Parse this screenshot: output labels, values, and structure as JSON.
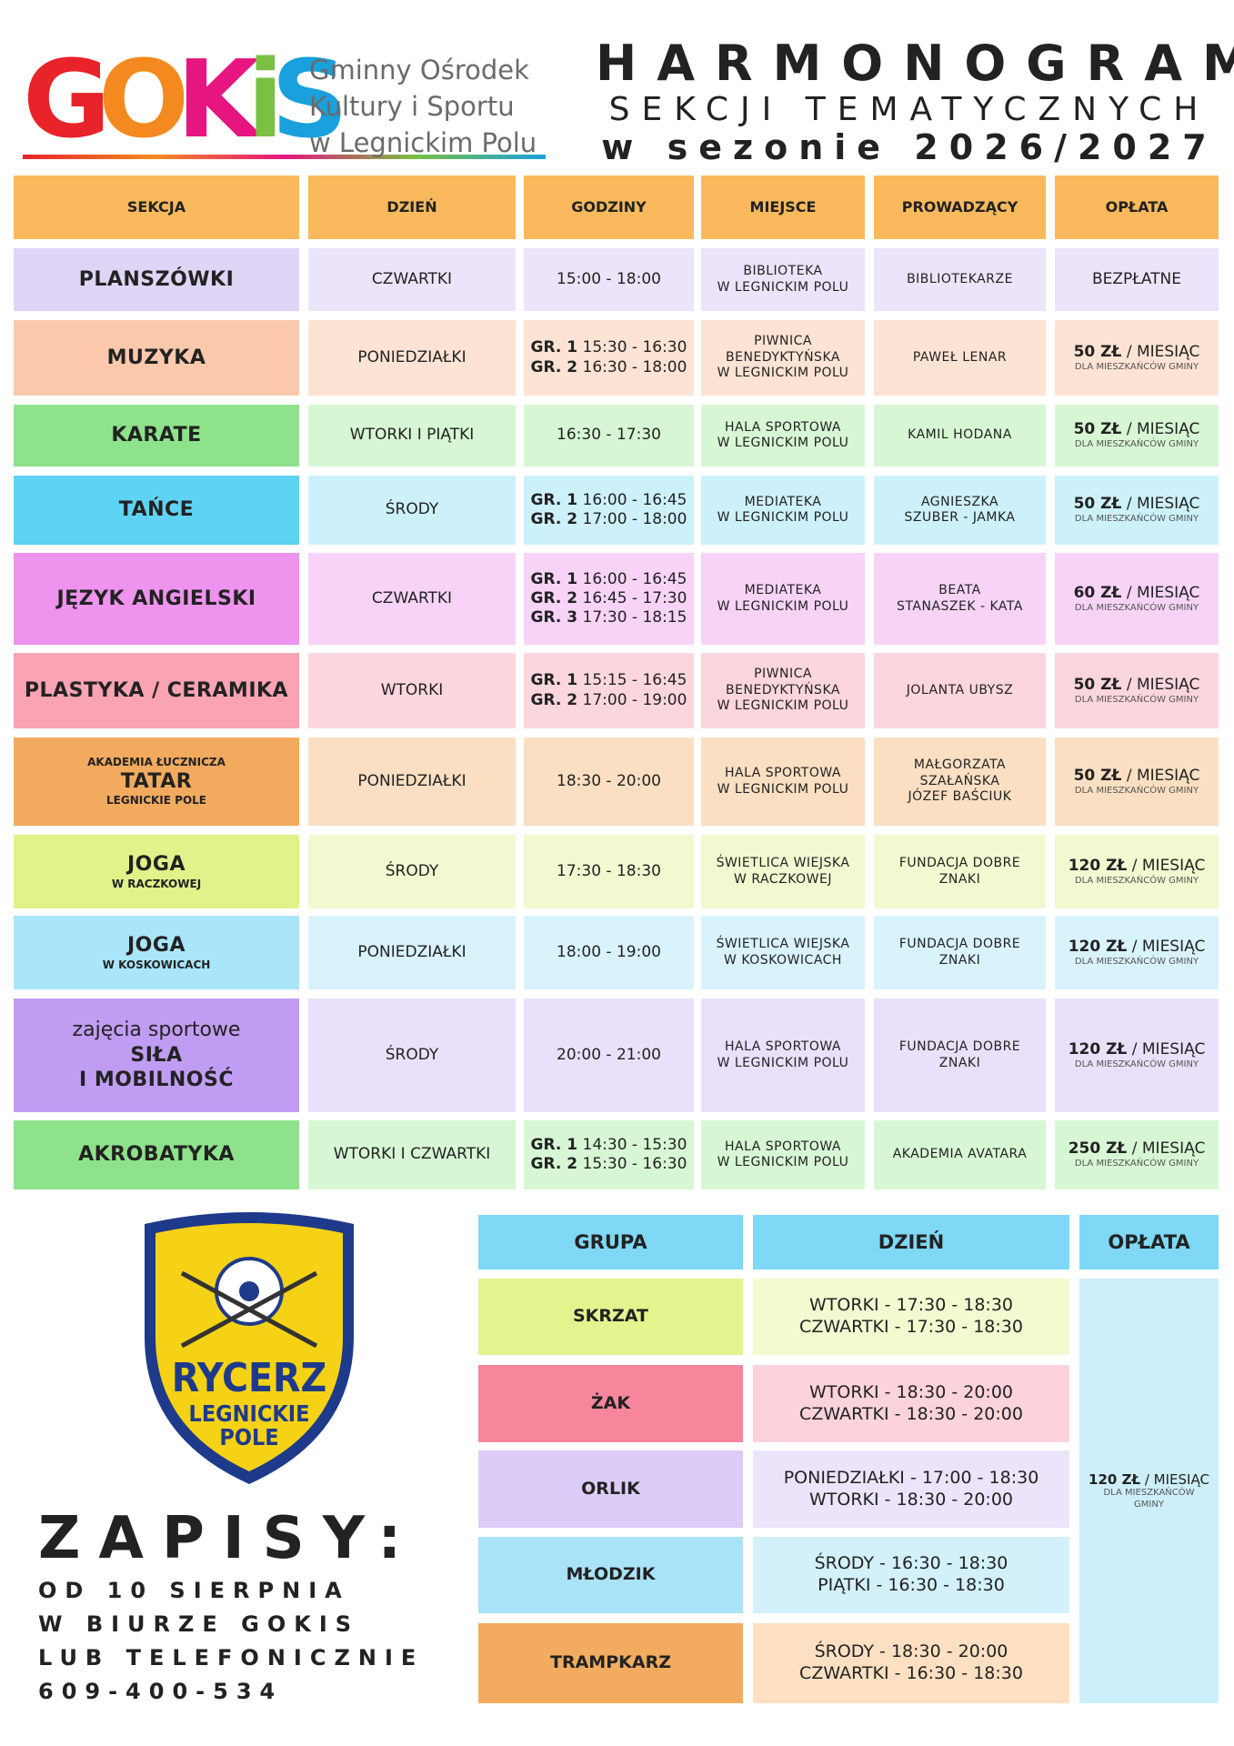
{
  "header": {
    "logo": [
      "G",
      "O",
      "K",
      "i",
      "S"
    ],
    "org": [
      "Gminny Ośrodek",
      "Kultury i Sportu",
      "w Legnickim Polu"
    ],
    "title": [
      "HARMONOGRAM",
      "SEKCJI TEMATYCZNYCH",
      "w sezonie 2026/2027"
    ]
  },
  "table": {
    "header_color": "#f9b95c",
    "headers": [
      "SEKCJA",
      "DZIEŃ",
      "GODZINY",
      "MIEJSCE",
      "PROWADZĄCY",
      "OPŁATA"
    ],
    "rows": [
      {
        "color": "#e0d4f7",
        "light": "#ece4fa",
        "section": {
          "name": [
            "PLANSZÓWKI"
          ]
        },
        "day": "CZWARTKI",
        "hours": [
          "15:00 - 18:00"
        ],
        "place": [
          "BIBLIOTEKA",
          "W LEGNICKIM POLU"
        ],
        "instructor": [
          "BIBLIOTEKARZE"
        ],
        "fee": {
          "amount": "BEZPŁATNE"
        }
      },
      {
        "color": "#fcc9ac",
        "light": "#fde3d4",
        "section": {
          "name": [
            "MUZYKA"
          ]
        },
        "day": "PONIEDZIAŁKI",
        "hours": [
          {
            "group": "GR. 1",
            "time": "15:30 - 16:30"
          },
          {
            "group": "GR. 2",
            "time": "16:30 - 18:00"
          }
        ],
        "place": [
          "PIWNICA",
          "BENEDYKTYŃSKA",
          "W LEGNICKIM POLU"
        ],
        "instructor": [
          "PAWEŁ LENAR"
        ],
        "fee": {
          "amount": "50 ZŁ",
          "unit": "/ MIESIĄC",
          "note": "DLA MIESZKAŃCÓW GMINY"
        }
      },
      {
        "color": "#8ee38a",
        "light": "#d7f7d4",
        "section": {
          "name": [
            "KARATE"
          ]
        },
        "day": "WTORKI I PIĄTKI",
        "hours": [
          "16:30 - 17:30"
        ],
        "place": [
          "HALA SPORTOWA",
          "W LEGNICKIM POLU"
        ],
        "instructor": [
          "KAMIL HODANA"
        ],
        "fee": {
          "amount": "50 ZŁ",
          "unit": "/ MIESIĄC",
          "note": "DLA MIESZKAŃCÓW GMINY"
        }
      },
      {
        "color": "#5fd3f3",
        "light": "#cdf1fb",
        "section": {
          "name": [
            "TAŃCE"
          ]
        },
        "day": "ŚRODY",
        "hours": [
          {
            "group": "GR. 1",
            "time": "16:00 - 16:45"
          },
          {
            "group": "GR. 2",
            "time": "17:00 - 18:00"
          }
        ],
        "place": [
          "MEDIATEKA",
          "W LEGNICKIM POLU"
        ],
        "instructor": [
          "AGNIESZKA",
          "SZUBER - JAMKA"
        ],
        "fee": {
          "amount": "50 ZŁ",
          "unit": "/ MIESIĄC",
          "note": "DLA MIESZKAŃCÓW GMINY"
        }
      },
      {
        "color": "#ee93ee",
        "light": "#f7d4f7",
        "section": {
          "name": [
            "JĘZYK ANGIELSKI"
          ]
        },
        "day": "CZWARTKI",
        "hours": [
          {
            "group": "GR. 1",
            "time": "16:00 - 16:45"
          },
          {
            "group": "GR. 2",
            "time": "16:45 - 17:30"
          },
          {
            "group": "GR. 3",
            "time": "17:30 - 18:15"
          }
        ],
        "place": [
          "MEDIATEKA",
          "W LEGNICKIM POLU"
        ],
        "instructor": [
          "BEATA",
          "STANASZEK - KATA"
        ],
        "fee": {
          "amount": "60 ZŁ",
          "unit": "/ MIESIĄC",
          "note": "DLA MIESZKAŃCÓW GMINY"
        }
      },
      {
        "color": "#f9a3b3",
        "light": "#fcd6dd",
        "section": {
          "name": [
            "PLASTYKA / CERAMIKA"
          ]
        },
        "day": "WTORKI",
        "hours": [
          {
            "group": "GR. 1",
            "time": "15:15 - 16:45"
          },
          {
            "group": "GR. 2",
            "time": "17:00 - 19:00"
          }
        ],
        "place": [
          "PIWNICA",
          "BENEDYKTYŃSKA",
          "W LEGNICKIM POLU"
        ],
        "instructor": [
          "JOLANTA UBYSZ"
        ],
        "fee": {
          "amount": "50 ZŁ",
          "unit": "/ MIESIĄC",
          "note": "DLA MIESZKAŃCÓW GMINY"
        }
      },
      {
        "color": "#f2aa5e",
        "light": "#fbdfc2",
        "section": {
          "above": "AKADEMIA ŁUCZNICZA",
          "name": [
            "TATAR"
          ],
          "below": "LEGNICKIE POLE"
        },
        "day": "PONIEDZIAŁKI",
        "hours": [
          "18:30 - 20:00"
        ],
        "place": [
          "HALA SPORTOWA",
          "W LEGNICKIM POLU"
        ],
        "instructor": [
          "MAŁGORZATA",
          "SZAŁAŃSKA",
          "JÓZEF BAŚCIUK"
        ],
        "fee": {
          "amount": "50 ZŁ",
          "unit": "/ MIESIĄC",
          "note": "DLA MIESZKAŃCÓW GMINY"
        }
      },
      {
        "color": "#e0f28a",
        "light": "#f1f9d0",
        "section": {
          "name": [
            "JOGA"
          ],
          "below": "W RACZKOWEJ"
        },
        "day": "ŚRODY",
        "hours": [
          "17:30 - 18:30"
        ],
        "place": [
          "ŚWIETLICA WIEJSKA",
          "W RACZKOWEJ"
        ],
        "instructor": [
          "FUNDACJA DOBRE",
          "ZNAKI"
        ],
        "fee": {
          "amount": "120 ZŁ",
          "unit": "/ MIESIĄC",
          "note": "DLA MIESZKAŃCÓW GMINY"
        }
      },
      {
        "color": "#a9e6fb",
        "light": "#d8f3fc",
        "section": {
          "name": [
            "JOGA"
          ],
          "below": "W KOSKOWICACH"
        },
        "day": "PONIEDZIAŁKI",
        "hours": [
          "18:00 - 19:00"
        ],
        "place": [
          "ŚWIETLICA WIEJSKA",
          "W KOSKOWICACH"
        ],
        "instructor": [
          "FUNDACJA DOBRE",
          "ZNAKI"
        ],
        "fee": {
          "amount": "120 ZŁ",
          "unit": "/ MIESIĄC",
          "note": "DLA MIESZKAŃCÓW GMINY"
        }
      },
      {
        "color": "#c09df2",
        "light": "#ebe0fb",
        "section": {
          "lead": "zajęcia sportowe",
          "name": [
            "SIŁA",
            "I MOBILNOŚĆ"
          ]
        },
        "day": "ŚRODY",
        "hours": [
          "20:00 - 21:00"
        ],
        "place": [
          "HALA SPORTOWA",
          "W LEGNICKIM POLU"
        ],
        "instructor": [
          "FUNDACJA DOBRE",
          "ZNAKI"
        ],
        "fee": {
          "amount": "120 ZŁ",
          "unit": "/ MIESIĄC",
          "note": "DLA MIESZKAŃCÓW GMINY"
        }
      },
      {
        "color": "#8ee38a",
        "light": "#d7f7d4",
        "section": {
          "name": [
            "AKROBATYKA"
          ]
        },
        "day": "WTORKI I CZWARTKI",
        "hours": [
          {
            "group": "GR. 1",
            "time": "14:30 - 15:30"
          },
          {
            "group": "GR. 2",
            "time": "15:30 - 16:30"
          }
        ],
        "place": [
          "HALA SPORTOWA",
          "W LEGNICKIM POLU"
        ],
        "instructor": [
          "AKADEMIA AVATARA"
        ],
        "fee": {
          "amount": "250 ZŁ",
          "unit": "/ MIESIĄC",
          "note": "DLA MIESZKAŃCÓW GMINY"
        }
      }
    ]
  },
  "club": {
    "badge": [
      "RYCERZ",
      "LEGNICKIE",
      "POLE"
    ],
    "header_color": "#7ed8f6",
    "headers": [
      "GRUPA",
      "DZIEŃ",
      "OPŁATA"
    ],
    "rows": [
      {
        "color": "#e3f48f",
        "light": "#f2fbd0",
        "group": "SKRZAT",
        "days": [
          "WTORKI - 17:30 - 18:30",
          "CZWARTKI - 17:30 - 18:30"
        ]
      },
      {
        "color": "#f7869c",
        "light": "#fcd3db",
        "group": "ŻAK",
        "days": [
          "WTORKI - 18:30 - 20:00",
          "CZWARTKI - 18:30 - 20:00"
        ]
      },
      {
        "color": "#dcccf7",
        "light": "#ece4fb",
        "group": "ORLIK",
        "days": [
          "PONIEDZIAŁKI - 17:00 - 18:30",
          "WTORKI - 18:30 - 20:00"
        ]
      },
      {
        "color": "#a9e3f9",
        "light": "#d3f1fb",
        "group": "MŁODZIK",
        "days": [
          "ŚRODY - 16:30 - 18:30",
          "PIĄTKI - 16:30 - 18:30"
        ]
      },
      {
        "color": "#f3ab5f",
        "light": "#fde0c2",
        "group": "TRAMPKARZ",
        "days": [
          "ŚRODY - 18:30 - 20:00",
          "CZWARTKI - 16:30 - 18:30"
        ]
      }
    ],
    "fee_color": "#cdeffb",
    "fee": {
      "amount": "120 ZŁ",
      "unit": "/ MIESIĄC",
      "note": [
        "DLA MIESZKAŃCÓW",
        "GMINY"
      ]
    }
  },
  "signup": {
    "title": "ZAPISY:",
    "lines": [
      "OD 10 SIERPNIA",
      "W BIURZE GOKIS",
      "LUB TELEFONICZNIE",
      "609-400-534"
    ]
  }
}
